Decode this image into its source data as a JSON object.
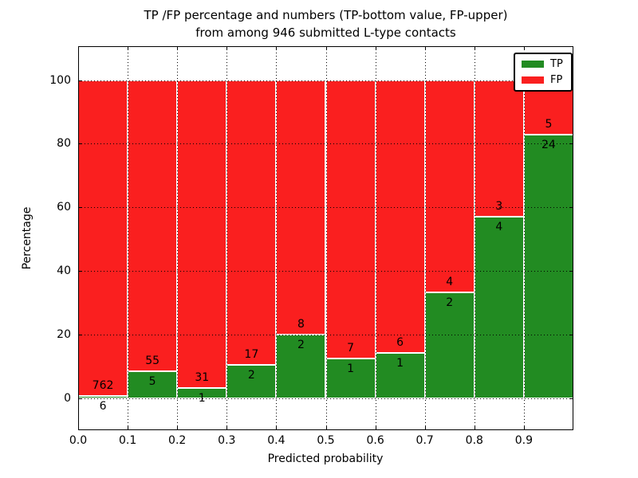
{
  "title": {
    "line1": "TP /FP percentage and numbers (TP-bottom value, FP-upper)",
    "line2": "from among 946 submitted L-type contacts"
  },
  "chart_data": {
    "type": "bar",
    "stacked": true,
    "title": "TP /FP percentage and numbers (TP-bottom value, FP-upper) from among 946 submitted L-type contacts",
    "xlabel": "Predicted probability",
    "ylabel": "Percentage",
    "total_contacts": 946,
    "xlim": [
      0.0,
      1.0
    ],
    "ylim": [
      -10.1,
      110.7
    ],
    "bins": [
      0.0,
      0.1,
      0.2,
      0.3,
      0.4,
      0.5,
      0.6,
      0.7,
      0.8,
      0.9
    ],
    "bin_width": 0.1,
    "xticks": [
      "0.0",
      "0.1",
      "0.2",
      "0.3",
      "0.4",
      "0.5",
      "0.6",
      "0.7",
      "0.8",
      "0.9"
    ],
    "yticks": [
      0,
      20,
      40,
      60,
      80,
      100
    ],
    "grid": "dotted",
    "legend_position": "upper right",
    "series": [
      {
        "name": "TP",
        "color": "#228B22",
        "counts": [
          6,
          5,
          1,
          2,
          2,
          1,
          1,
          2,
          4,
          24
        ],
        "percentages": [
          0.78,
          8.33,
          3.13,
          10.53,
          20.0,
          12.5,
          14.29,
          33.33,
          57.14,
          82.76
        ]
      },
      {
        "name": "FP",
        "color": "#fa1f1f",
        "counts": [
          762,
          55,
          31,
          17,
          8,
          7,
          6,
          4,
          3,
          5
        ],
        "percentages": [
          99.22,
          91.67,
          96.87,
          89.47,
          80.0,
          87.5,
          85.71,
          66.67,
          42.86,
          17.24
        ]
      }
    ]
  }
}
